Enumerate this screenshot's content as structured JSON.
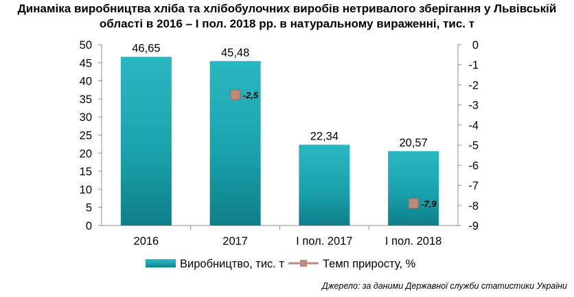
{
  "title": {
    "line1": "Динаміка виробництва хліба та хлібобулочних виробів нетривалого зберігання у Львівській",
    "line2": "області в 2016 – І пол. 2018 рр. в натуральному вираженні, тис. т"
  },
  "source": "Джерело: за даними Державної служби статистики України",
  "chart_data": {
    "type": "bar",
    "categories": [
      "2016",
      "2017",
      "І пол. 2017",
      "І пол. 2018"
    ],
    "series": [
      {
        "name": "Виробництво, тис. т",
        "type": "bar",
        "axis": "left",
        "values": [
          46.65,
          45.48,
          22.34,
          20.57
        ],
        "labels": [
          "46,65",
          "45,48",
          "22,34",
          "20,57"
        ],
        "color": "#1aa3ad"
      },
      {
        "name": "Темп приросту, %",
        "type": "marker",
        "axis": "right",
        "values": [
          null,
          -2.5,
          null,
          -7.9
        ],
        "labels": [
          null,
          "-2,5",
          null,
          "-7,9"
        ],
        "color": "#c0897a"
      }
    ],
    "ylim_left": [
      0,
      50
    ],
    "yticks_left": [
      "0",
      "5",
      "10",
      "15",
      "20",
      "25",
      "30",
      "35",
      "40",
      "45",
      "50"
    ],
    "ylim_right": [
      -9,
      0
    ],
    "yticks_right": [
      "0",
      "-1",
      "-2",
      "-3",
      "-4",
      "-5",
      "-6",
      "-7",
      "-8",
      "-9"
    ],
    "legend_position": "bottom",
    "grid": false
  }
}
